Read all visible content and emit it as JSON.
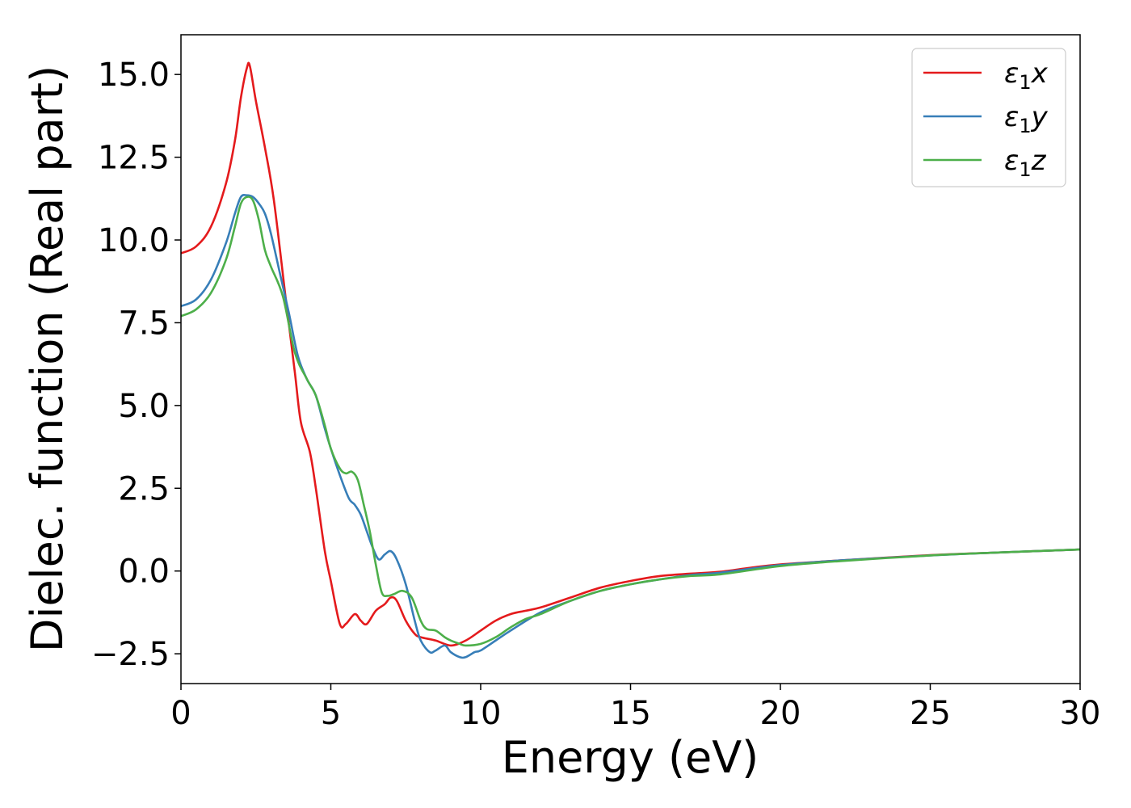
{
  "chart_data": {
    "type": "line",
    "title": "",
    "xlabel": "Energy (eV)",
    "ylabel": "Dielec. function (Real part)",
    "xlim": [
      0,
      30
    ],
    "ylim": [
      -3.4,
      16.2
    ],
    "xticks": [
      0,
      5,
      10,
      15,
      20,
      25,
      30
    ],
    "xtick_labels": [
      "0",
      "5",
      "10",
      "15",
      "20",
      "25",
      "30"
    ],
    "yticks": [
      -2.5,
      0.0,
      2.5,
      5.0,
      7.5,
      10.0,
      12.5,
      15.0
    ],
    "ytick_labels": [
      "−2.5",
      "0.0",
      "2.5",
      "5.0",
      "7.5",
      "10.0",
      "12.5",
      "15.0"
    ],
    "grid": false,
    "legend_position": "top-right",
    "series": [
      {
        "name": "ε₁x",
        "legend": {
          "symbol": "ε",
          "sub": "1",
          "var": "x"
        },
        "color": "#e41a1c",
        "x": [
          0,
          0.5,
          1,
          1.5,
          1.8,
          2.0,
          2.2,
          2.3,
          2.5,
          2.8,
          3.1,
          3.5,
          3.8,
          4.0,
          4.3,
          4.5,
          4.8,
          5.0,
          5.3,
          5.5,
          5.8,
          6.0,
          6.2,
          6.5,
          6.8,
          7.0,
          7.2,
          7.5,
          7.8,
          8.0,
          8.5,
          9.0,
          9.5,
          10.0,
          10.5,
          11.0,
          11.5,
          12.0,
          13.0,
          14.0,
          15.0,
          16.0,
          17.0,
          18.0,
          19.0,
          20.0,
          22.0,
          25.0,
          27.0,
          30.0
        ],
        "y": [
          9.6,
          9.8,
          10.4,
          11.7,
          13.0,
          14.3,
          15.2,
          15.25,
          14.2,
          12.8,
          11.2,
          8.2,
          6.0,
          4.5,
          3.6,
          2.5,
          0.6,
          -0.3,
          -1.6,
          -1.6,
          -1.3,
          -1.5,
          -1.6,
          -1.2,
          -1.0,
          -0.8,
          -0.9,
          -1.5,
          -1.9,
          -2.0,
          -2.1,
          -2.25,
          -2.1,
          -1.8,
          -1.5,
          -1.3,
          -1.2,
          -1.1,
          -0.8,
          -0.5,
          -0.3,
          -0.15,
          -0.08,
          -0.02,
          0.1,
          0.2,
          0.32,
          0.48,
          0.55,
          0.65
        ]
      },
      {
        "name": "ε₁y",
        "legend": {
          "symbol": "ε",
          "sub": "1",
          "var": "y"
        },
        "color": "#377eb8",
        "x": [
          0,
          0.5,
          1,
          1.5,
          1.8,
          2.0,
          2.2,
          2.4,
          2.6,
          2.8,
          3.0,
          3.3,
          3.6,
          3.9,
          4.2,
          4.5,
          4.8,
          5.0,
          5.3,
          5.6,
          5.8,
          6.0,
          6.2,
          6.4,
          6.6,
          6.8,
          7.0,
          7.2,
          7.5,
          7.8,
          8.0,
          8.3,
          8.5,
          8.8,
          9.0,
          9.3,
          9.5,
          9.8,
          10.0,
          10.5,
          11.0,
          12.0,
          13.0,
          14.0,
          15.0,
          16.0,
          17.0,
          18.0,
          20.0,
          22.0,
          25.0,
          27.0,
          30.0
        ],
        "y": [
          8.0,
          8.2,
          8.8,
          9.9,
          10.8,
          11.3,
          11.35,
          11.3,
          11.1,
          10.8,
          10.2,
          9.0,
          7.8,
          6.5,
          5.8,
          5.3,
          4.3,
          3.7,
          2.9,
          2.2,
          2.0,
          1.7,
          1.2,
          0.7,
          0.35,
          0.5,
          0.6,
          0.35,
          -0.4,
          -1.5,
          -2.1,
          -2.45,
          -2.4,
          -2.25,
          -2.45,
          -2.6,
          -2.6,
          -2.45,
          -2.4,
          -2.1,
          -1.8,
          -1.25,
          -0.9,
          -0.6,
          -0.4,
          -0.25,
          -0.12,
          -0.05,
          0.18,
          0.32,
          0.47,
          0.55,
          0.65
        ]
      },
      {
        "name": "ε₁z",
        "legend": {
          "symbol": "ε",
          "sub": "1",
          "var": "z"
        },
        "color": "#4daf4a",
        "x": [
          0,
          0.5,
          1,
          1.5,
          1.8,
          2.0,
          2.2,
          2.4,
          2.6,
          2.8,
          3.0,
          3.4,
          3.8,
          4.2,
          4.5,
          4.8,
          5.0,
          5.3,
          5.5,
          5.7,
          5.9,
          6.1,
          6.3,
          6.5,
          6.7,
          6.9,
          7.1,
          7.4,
          7.7,
          8.0,
          8.2,
          8.5,
          8.8,
          9.0,
          9.3,
          9.5,
          10.0,
          10.5,
          11.0,
          11.5,
          12.0,
          13.0,
          14.0,
          15.0,
          16.0,
          17.0,
          18.0,
          20.0,
          22.0,
          25.0,
          27.0,
          30.0
        ],
        "y": [
          7.7,
          7.9,
          8.4,
          9.4,
          10.4,
          11.1,
          11.3,
          11.2,
          10.6,
          9.7,
          9.2,
          8.3,
          6.6,
          5.8,
          5.3,
          4.4,
          3.7,
          3.1,
          2.95,
          3.0,
          2.75,
          2.0,
          1.2,
          0.2,
          -0.65,
          -0.75,
          -0.7,
          -0.6,
          -0.8,
          -1.5,
          -1.75,
          -1.8,
          -2.0,
          -2.1,
          -2.2,
          -2.25,
          -2.2,
          -2.0,
          -1.7,
          -1.45,
          -1.3,
          -0.9,
          -0.6,
          -0.4,
          -0.25,
          -0.15,
          -0.1,
          0.15,
          0.3,
          0.47,
          0.55,
          0.65
        ]
      }
    ]
  }
}
